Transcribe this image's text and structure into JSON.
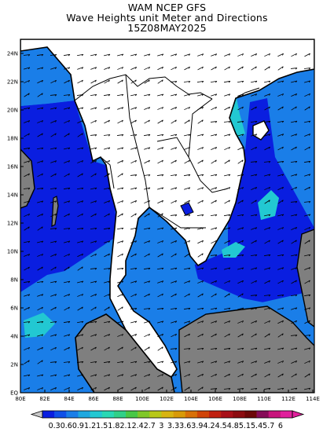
{
  "title": {
    "line1": "WAM NCEP GFS",
    "line2": "Wave Heights unit Meter and Directions",
    "line3": "15Z08MAY2025"
  },
  "colors": {
    "land": "#7f7f7f",
    "outline": "#000000",
    "arrow": "#000000"
  },
  "map": {
    "lat_ticks": [
      "EQ",
      "2N",
      "4N",
      "6N",
      "8N",
      "10N",
      "12N",
      "14N",
      "16N",
      "18N",
      "20N",
      "22N",
      "24N"
    ],
    "lon_ticks": [
      "80E",
      "82E",
      "84E",
      "86E",
      "88E",
      "100E",
      "102E",
      "104E",
      "106E",
      "108E",
      "110E",
      "112E",
      "114E"
    ]
  },
  "colorbar": {
    "labels": [
      "0.3",
      "0.6",
      "0.9",
      "1.2",
      "1.5",
      "1.8",
      "2.1",
      "2.4",
      "2.7",
      "3",
      "3.3",
      "3.6",
      "3.9",
      "4.2",
      "4.5",
      "4.8",
      "5.1",
      "5.4",
      "5.7",
      "6"
    ],
    "colors": [
      "#0a1ee0",
      "#1050e8",
      "#1a7ee8",
      "#1ea8e0",
      "#22c8d2",
      "#28d8b4",
      "#30d088",
      "#48c846",
      "#80c828",
      "#b8c818",
      "#d8b410",
      "#d89a08",
      "#d87008",
      "#d04408",
      "#c02010",
      "#a81018",
      "#8c0c10",
      "#6c0808",
      "#860c58",
      "#c8147c",
      "#e0209c"
    ]
  }
}
